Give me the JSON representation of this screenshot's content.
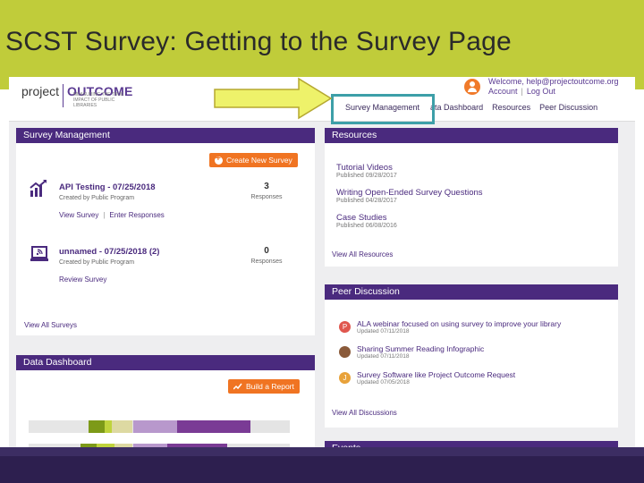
{
  "slide": {
    "title": "SCST Survey: Getting to the Survey Page",
    "band_color": "#c0cc3a",
    "bottom_color": "#2d1f4f"
  },
  "header": {
    "logo_project": "project",
    "logo_outcome": "OUTCOME",
    "logo_tagline": "Measuring the true impact of public libraries",
    "welcome": "Welcome, help@projectoutcome.org",
    "account": "Account",
    "logout": "Log Out",
    "user_icon": "user-icon"
  },
  "nav": {
    "items": [
      "Survey Management",
      "Data Dashboard",
      "Resources",
      "Peer Discussion"
    ],
    "visible_labels": [
      "Survey Management",
      "ata Dashboard",
      "Resources",
      "Peer Discussion"
    ],
    "highlight_color": "#3d9fa8"
  },
  "callout": {
    "arrow_color": "#eef26a"
  },
  "survey_management": {
    "title": "Survey Management",
    "create_button": "Create New Survey",
    "surveys": [
      {
        "icon": "chart-icon",
        "title": "API Testing - 07/25/2018",
        "created": "Created by Public Program",
        "count": "3",
        "count_label": "Responses",
        "links": [
          "View Survey",
          "Enter Responses"
        ]
      },
      {
        "icon": "laptop-icon",
        "title": "unnamed - 07/25/2018 (2)",
        "created": "Created by Public Program",
        "count": "0",
        "count_label": "Responses",
        "links": [
          "Review Survey"
        ]
      }
    ],
    "view_all": "View All Surveys"
  },
  "data_dashboard": {
    "title": "Data Dashboard",
    "report_button": "Build a Report",
    "bar_rows": [
      {
        "segments": [
          0.23,
          0.06,
          0.03,
          0.08,
          0.17,
          0.28
        ]
      },
      {
        "segments": [
          0.2,
          0.06,
          0.07,
          0.07,
          0.13,
          0.23
        ]
      }
    ],
    "bar_colors": [
      "#e6e6e6",
      "#7d9a18",
      "#bfd33c",
      "#ddd9a2",
      "#b898cc",
      "#7a3b95"
    ]
  },
  "resources": {
    "title": "Resources",
    "items": [
      {
        "title": "Tutorial Videos",
        "published": "Published 09/28/2017"
      },
      {
        "title": "Writing Open-Ended Survey Questions",
        "published": "Published 04/28/2017"
      },
      {
        "title": "Case Studies",
        "published": "Published 06/08/2016"
      }
    ],
    "view_all": "View All Resources"
  },
  "peer_discussion": {
    "title": "Peer Discussion",
    "items": [
      {
        "avatar": "P",
        "avatar_color": "#e0574e",
        "title": "ALA webinar focused on using survey to improve your library",
        "updated": "Updated 07/11/2018"
      },
      {
        "avatar": "",
        "avatar_color": "#8a5a3a",
        "title": "Sharing Summer Reading Infographic",
        "updated": "Updated 07/11/2018"
      },
      {
        "avatar": "J",
        "avatar_color": "#e8a23a",
        "title": "Survey Software like Project Outcome Request",
        "updated": "Updated 07/05/2018"
      }
    ],
    "view_all": "View All Discussions"
  },
  "events": {
    "title": "Events"
  }
}
